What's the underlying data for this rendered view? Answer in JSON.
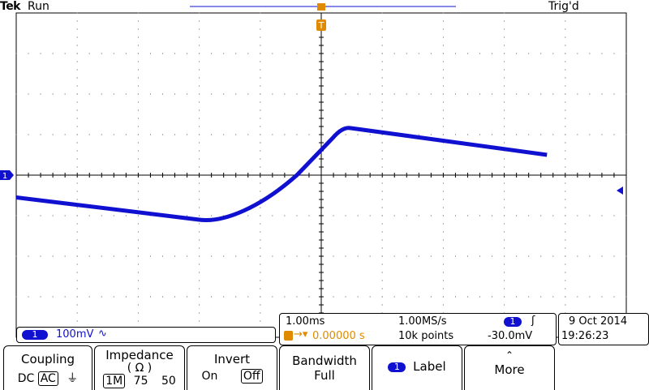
{
  "header": {
    "brand": "Tek",
    "state": "Run",
    "trigger_status": "Trig'd"
  },
  "trigger_marker": {
    "letter": "T"
  },
  "channel": {
    "number": "1",
    "scale": "100mV",
    "coupling_glyph": "∿"
  },
  "timebase": {
    "time_div": "1.00ms",
    "sample_rate": "1.00MS/s",
    "position": "0.00000 s",
    "record_length": "10k points",
    "trig_channel": "1",
    "trig_slope_glyph": "ʃ",
    "trig_level": "-30.0mV"
  },
  "datetime": {
    "date": "9 Oct  2014",
    "time": "19:26:23"
  },
  "menu": {
    "coupling": {
      "title": "Coupling",
      "opt1": "DC",
      "opt2": "AC",
      "selected": "AC",
      "ground_glyph": "⏚"
    },
    "impedance": {
      "title": "Impedance",
      "unit": "( Ω )",
      "opt1": "1M",
      "opt2": "75",
      "opt3": "50",
      "selected": "1M"
    },
    "invert": {
      "title": "Invert",
      "opt1": "On",
      "opt2": "Off",
      "selected": "Off"
    },
    "bandwidth": {
      "title": "Bandwidth",
      "value": "Full"
    },
    "label": {
      "channel": "1",
      "title": "Label"
    },
    "more": {
      "title": "More",
      "glyph": "⌃"
    }
  },
  "colors": {
    "trace": "#1010d0",
    "trigger": "#e08a00",
    "grid": "#000000"
  },
  "waveform": {
    "description_points": [
      [
        -5.0,
        -0.55
      ],
      [
        -2.0,
        -1.1
      ],
      [
        -1.0,
        -0.6
      ],
      [
        -0.4,
        0.0
      ],
      [
        0.35,
        1.2
      ],
      [
        3.7,
        0.5
      ]
    ]
  }
}
